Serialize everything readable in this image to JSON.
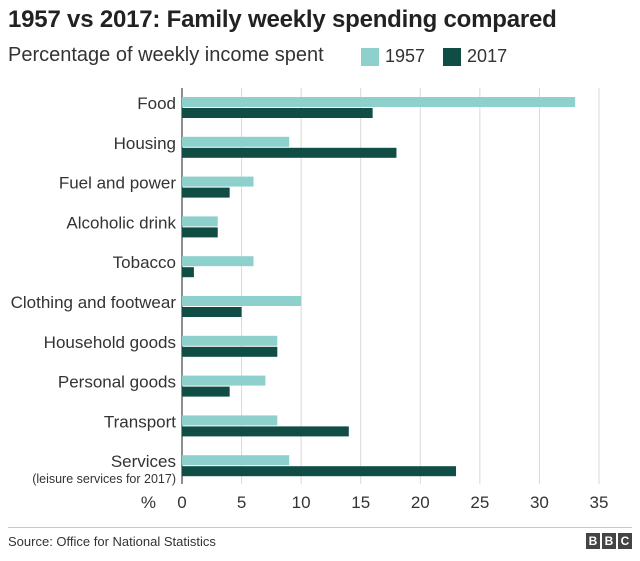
{
  "colors": {
    "s1957": "#8ed1cc",
    "s2017": "#0f4d45"
  },
  "chart_data": {
    "type": "bar",
    "orientation": "horizontal",
    "title": "1957 vs 2017: Family weekly spending compared",
    "subtitle": "Percentage of weekly income spent",
    "categories": [
      "Food",
      "Housing",
      "Fuel and power",
      "Alcoholic drink",
      "Tobacco",
      "Clothing and footwear",
      "Household goods",
      "Personal goods",
      "Transport",
      "Services"
    ],
    "category_notes": [
      "",
      "",
      "",
      "",
      "",
      "",
      "",
      "",
      "",
      "(leisure services for 2017)"
    ],
    "series": [
      {
        "name": "1957",
        "values": [
          33,
          9,
          6,
          3,
          6,
          10,
          8,
          7,
          8,
          9
        ]
      },
      {
        "name": "2017",
        "values": [
          16,
          18,
          4,
          3,
          1,
          5,
          8,
          4,
          14,
          23
        ]
      }
    ],
    "x_unit_label": "%",
    "x_ticks": [
      0,
      5,
      10,
      15,
      20,
      25,
      30,
      35
    ],
    "xlim": [
      0,
      35
    ],
    "grid": true,
    "legend": "top"
  },
  "footer": {
    "source": "Source: Office for National Statistics",
    "logo": [
      "B",
      "B",
      "C"
    ]
  }
}
